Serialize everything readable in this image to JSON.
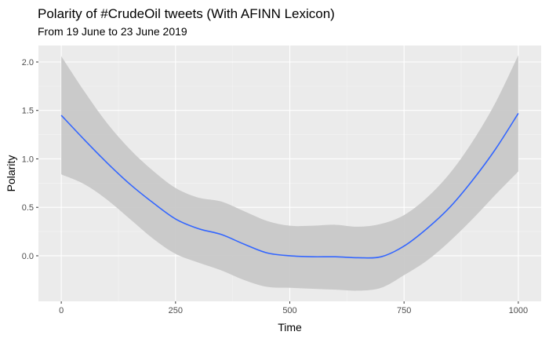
{
  "chart_data": {
    "type": "line",
    "title": "Polarity of #CrudeOil tweets (With AFINN Lexicon)",
    "subtitle": "From 19 June to 23 June 2019",
    "xlabel": "Time",
    "ylabel": "Polarity",
    "xlim": [
      -50,
      1050
    ],
    "ylim": [
      -0.47,
      2.17
    ],
    "x_ticks": [
      0,
      250,
      500,
      750,
      1000
    ],
    "x_tick_labels": [
      "0",
      "250",
      "500",
      "750",
      "1000"
    ],
    "y_ticks": [
      0.0,
      0.5,
      1.0,
      1.5,
      2.0
    ],
    "y_tick_labels": [
      "0.0",
      "0.5",
      "1.0",
      "1.5",
      "2.0"
    ],
    "grid": true,
    "background": "#ebebeb",
    "line_color": "#3366ff",
    "band_color": "#c8c8c8",
    "series": [
      {
        "x": [
          0,
          50,
          100,
          150,
          200,
          250,
          300,
          350,
          400,
          450,
          500,
          550,
          600,
          650,
          700,
          750,
          800,
          850,
          900,
          950,
          1000
        ],
        "values": [
          1.45,
          1.2,
          0.96,
          0.74,
          0.55,
          0.38,
          0.28,
          0.22,
          0.12,
          0.03,
          0.0,
          -0.01,
          -0.01,
          -0.02,
          -0.01,
          0.1,
          0.28,
          0.5,
          0.78,
          1.1,
          1.47
        ],
        "lower": [
          0.84,
          0.74,
          0.58,
          0.38,
          0.18,
          0.02,
          -0.07,
          -0.15,
          -0.25,
          -0.32,
          -0.33,
          -0.34,
          -0.35,
          -0.36,
          -0.33,
          -0.2,
          -0.05,
          0.15,
          0.38,
          0.63,
          0.87
        ],
        "upper": [
          2.06,
          1.7,
          1.37,
          1.1,
          0.88,
          0.7,
          0.6,
          0.56,
          0.46,
          0.36,
          0.31,
          0.31,
          0.32,
          0.3,
          0.33,
          0.42,
          0.6,
          0.85,
          1.18,
          1.58,
          2.07
        ]
      }
    ]
  }
}
